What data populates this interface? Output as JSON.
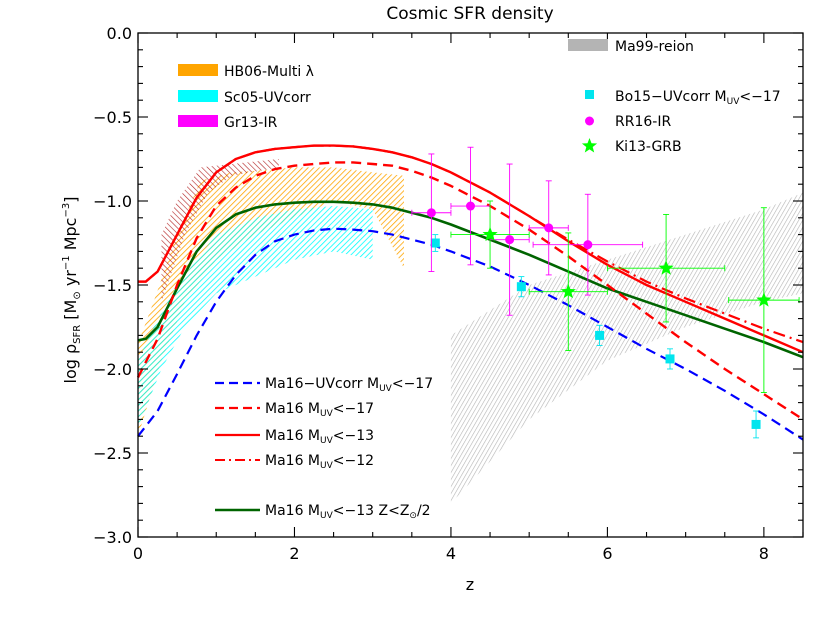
{
  "chart_data": {
    "type": "line",
    "title": "Cosmic SFR density",
    "xlabel": "z",
    "ylabel": "log ρ_SFR [M⊙ yr⁻¹ Mpc⁻³]",
    "ylabel_parts": {
      "main": "log ρ",
      "sub": "SFR",
      "rest": " [M",
      "sun": "⊙",
      "yr": " yr",
      "e1": "−1",
      "mpc": " Mpc",
      "e3": "−3",
      "close": "]"
    },
    "xlim": [
      0,
      8.5
    ],
    "ylim": [
      -3.0,
      0.0
    ],
    "xticks": [
      0,
      2,
      4,
      6,
      8
    ],
    "yticks": [
      -3.0,
      -2.5,
      -2.0,
      -1.5,
      -1.0,
      -0.5,
      0.0
    ],
    "ytick_labels": [
      "−3.0",
      "−2.5",
      "−2.0",
      "−1.5",
      "−1.0",
      "−0.5",
      "0.0"
    ],
    "colors": {
      "hb06": "#ffa500",
      "sc05": "#00ffff",
      "gr13": "#ff00ff",
      "ma99": "#b4b4b4",
      "bo15": "#00e5ee",
      "rr16": "#ff00ff",
      "ki13": "#00ff00",
      "ma16_uv": "#0000ff",
      "ma16_red": "#ff0000",
      "ma16_z": "#006400",
      "hb_hatch": "#b22222"
    },
    "bands": [
      {
        "name": "HB06-Multi λ",
        "color": "#ffa500",
        "lower": [
          [
            0,
            -2.4
          ],
          [
            0.3,
            -1.95
          ],
          [
            0.6,
            -1.6
          ],
          [
            1.0,
            -1.35
          ],
          [
            1.5,
            -1.2
          ],
          [
            2.0,
            -1.1
          ],
          [
            2.5,
            -1.0
          ],
          [
            3.0,
            -1.05
          ],
          [
            3.4,
            -1.4
          ]
        ],
        "upper": [
          [
            3.4,
            -0.85
          ],
          [
            3.0,
            -0.83
          ],
          [
            2.5,
            -0.8
          ],
          [
            2.0,
            -0.8
          ],
          [
            1.5,
            -0.82
          ],
          [
            1.2,
            -0.83
          ],
          [
            0.8,
            -0.88
          ],
          [
            0.5,
            -1.2
          ],
          [
            0.2,
            -1.6
          ],
          [
            0,
            -1.85
          ]
        ]
      },
      {
        "name": "Sc05-UVcorr",
        "color": "#00ffff",
        "lower": [
          [
            0,
            -2.35
          ],
          [
            0.3,
            -2.0
          ],
          [
            0.6,
            -1.75
          ],
          [
            1.0,
            -1.55
          ],
          [
            1.5,
            -1.45
          ],
          [
            2.0,
            -1.35
          ],
          [
            2.5,
            -1.3
          ],
          [
            3.0,
            -1.35
          ]
        ],
        "upper": [
          [
            3.0,
            -1.05
          ],
          [
            2.5,
            -1.03
          ],
          [
            2.0,
            -1.05
          ],
          [
            1.5,
            -1.1
          ],
          [
            1.0,
            -1.2
          ],
          [
            0.5,
            -1.5
          ],
          [
            0.2,
            -1.75
          ],
          [
            0,
            -1.95
          ]
        ]
      },
      {
        "name": "Ma99-reion",
        "color": "#b4b4b4",
        "lower": [
          [
            4.0,
            -2.8
          ],
          [
            5.0,
            -2.3
          ],
          [
            6.0,
            -1.95
          ],
          [
            7.0,
            -1.75
          ],
          [
            8.0,
            -1.6
          ],
          [
            8.5,
            -1.55
          ]
        ],
        "upper": [
          [
            8.5,
            -0.95
          ],
          [
            8.0,
            -1.05
          ],
          [
            7.0,
            -1.2
          ],
          [
            6.0,
            -1.35
          ],
          [
            5.0,
            -1.5
          ],
          [
            4.0,
            -1.8
          ]
        ]
      }
    ],
    "hb_hatch": {
      "lower": [
        [
          0.3,
          -1.6
        ],
        [
          0.6,
          -1.2
        ],
        [
          0.9,
          -0.95
        ],
        [
          1.2,
          -0.85
        ],
        [
          1.8,
          -0.8
        ]
      ],
      "upper": [
        [
          1.8,
          -0.75
        ],
        [
          1.2,
          -0.78
        ],
        [
          0.8,
          -0.8
        ],
        [
          0.5,
          -1.0
        ],
        [
          0.3,
          -1.2
        ]
      ]
    },
    "series": [
      {
        "name": "Ma16-UVcorr M_UV<-17",
        "label_main": "Ma16−UVcorr M",
        "label_sub": "UV",
        "label_rest": "<−17",
        "style": "dashed",
        "color": "#0000ff",
        "x": [
          0,
          0.25,
          0.5,
          0.75,
          1.0,
          1.25,
          1.5,
          1.75,
          2.0,
          2.25,
          2.5,
          2.75,
          3.0,
          3.25,
          3.5,
          3.75,
          4.0,
          4.5,
          5.0,
          5.5,
          6.0,
          6.5,
          7.0,
          7.5,
          8.0,
          8.5
        ],
        "y": [
          -2.4,
          -2.25,
          -2.03,
          -1.8,
          -1.6,
          -1.44,
          -1.32,
          -1.24,
          -1.2,
          -1.175,
          -1.165,
          -1.17,
          -1.18,
          -1.2,
          -1.23,
          -1.26,
          -1.3,
          -1.39,
          -1.5,
          -1.62,
          -1.75,
          -1.88,
          -2.0,
          -2.13,
          -2.27,
          -2.42
        ]
      },
      {
        "name": "Ma16 M_UV<-17",
        "label_main": "Ma16 M",
        "label_sub": "UV",
        "label_rest": "<−17",
        "style": "dashed",
        "color": "#ff0000",
        "x": [
          0,
          0.25,
          0.5,
          0.75,
          1.0,
          1.25,
          1.5,
          1.75,
          2.0,
          2.25,
          2.5,
          2.75,
          3.0,
          3.25,
          3.5,
          3.75,
          4.0,
          4.5,
          5.0,
          5.5,
          6.0,
          6.5,
          7.0,
          7.5,
          8.0,
          8.5
        ],
        "y": [
          -2.05,
          -1.82,
          -1.5,
          -1.22,
          -1.03,
          -0.92,
          -0.85,
          -0.81,
          -0.79,
          -0.78,
          -0.77,
          -0.77,
          -0.78,
          -0.79,
          -0.82,
          -0.86,
          -0.91,
          -1.03,
          -1.17,
          -1.33,
          -1.5,
          -1.67,
          -1.84,
          -2.0,
          -2.15,
          -2.3
        ]
      },
      {
        "name": "Ma16 M_UV<-13",
        "label_main": "Ma16 M",
        "label_sub": "UV",
        "label_rest": "<−13",
        "style": "solid",
        "color": "#ff0000",
        "x": [
          0,
          0.1,
          0.25,
          0.5,
          0.75,
          1.0,
          1.25,
          1.5,
          1.75,
          2.0,
          2.25,
          2.5,
          2.75,
          3.0,
          3.25,
          3.5,
          3.75,
          4.0,
          4.5,
          5.0,
          5.5,
          6.0,
          6.5,
          7.0,
          7.5,
          8.0,
          8.5
        ],
        "y": [
          -1.48,
          -1.48,
          -1.42,
          -1.2,
          -0.98,
          -0.83,
          -0.75,
          -0.71,
          -0.69,
          -0.68,
          -0.67,
          -0.67,
          -0.675,
          -0.69,
          -0.71,
          -0.74,
          -0.78,
          -0.83,
          -0.95,
          -1.09,
          -1.24,
          -1.38,
          -1.5,
          -1.6,
          -1.7,
          -1.8,
          -1.9
        ]
      },
      {
        "name": "Ma16 M_UV<-12",
        "label_main": "Ma16 M",
        "label_sub": "UV",
        "label_rest": "<−12",
        "style": "dashdot",
        "color": "#ff0000",
        "x": [
          0,
          0.1,
          0.25,
          0.5,
          0.75,
          1.0,
          1.25,
          1.5,
          1.75,
          2.0,
          2.25,
          2.5,
          2.75,
          3.0,
          3.25,
          3.5,
          3.75,
          4.0,
          4.5,
          5.0,
          5.5,
          6.0,
          6.5,
          7.0,
          7.5,
          8.0,
          8.5
        ],
        "y": [
          -1.48,
          -1.48,
          -1.42,
          -1.2,
          -0.98,
          -0.83,
          -0.75,
          -0.71,
          -0.69,
          -0.68,
          -0.67,
          -0.67,
          -0.675,
          -0.69,
          -0.71,
          -0.74,
          -0.78,
          -0.83,
          -0.95,
          -1.09,
          -1.23,
          -1.36,
          -1.48,
          -1.58,
          -1.67,
          -1.76,
          -1.84
        ]
      },
      {
        "name": "Ma16 M_UV<-13 Z<Z⊙/2",
        "label_main": "Ma16 M",
        "label_sub": "UV",
        "label_rest": "<−13 Z<Z",
        "label_sun": "⊙",
        "label_end": "/2",
        "style": "solid",
        "color": "#006400",
        "x": [
          0,
          0.1,
          0.25,
          0.5,
          0.75,
          1.0,
          1.25,
          1.5,
          1.75,
          2.0,
          2.25,
          2.5,
          2.75,
          3.0,
          3.25,
          3.5,
          3.75,
          4.0,
          4.5,
          5.0,
          5.5,
          6.0,
          6.5,
          7.0,
          7.5,
          8.0,
          8.5
        ],
        "y": [
          -1.83,
          -1.82,
          -1.75,
          -1.52,
          -1.3,
          -1.16,
          -1.08,
          -1.04,
          -1.02,
          -1.01,
          -1.005,
          -1.005,
          -1.01,
          -1.02,
          -1.04,
          -1.07,
          -1.1,
          -1.14,
          -1.23,
          -1.32,
          -1.42,
          -1.52,
          -1.6,
          -1.68,
          -1.76,
          -1.84,
          -1.93
        ]
      }
    ],
    "points": [
      {
        "name": "Bo15-UVcorr M_UV<-17",
        "label_main": "Bo15−UVcorr M",
        "label_sub": "UV",
        "label_rest": "<−17",
        "marker": "square",
        "color": "#00e5ee",
        "data": [
          {
            "x": 3.8,
            "y": -1.25,
            "yerr": 0.05
          },
          {
            "x": 4.9,
            "y": -1.51,
            "yerr": 0.06
          },
          {
            "x": 5.9,
            "y": -1.8,
            "yerr": 0.06
          },
          {
            "x": 6.8,
            "y": -1.94,
            "yerr": 0.06
          },
          {
            "x": 7.9,
            "y": -2.33,
            "yerr": 0.08
          }
        ]
      },
      {
        "name": "RR16-IR",
        "marker": "circle",
        "color": "#ff00ff",
        "data": [
          {
            "x": 3.75,
            "y": -1.07,
            "yerr": 0.35,
            "xerr": 0.25
          },
          {
            "x": 4.25,
            "y": -1.03,
            "yerr": 0.35,
            "xerr": 0.25
          },
          {
            "x": 4.75,
            "y": -1.23,
            "yerr": 0.45,
            "xerr": 0.25
          },
          {
            "x": 5.25,
            "y": -1.16,
            "yerr": 0.28,
            "xerr": 0.25
          },
          {
            "x": 5.75,
            "y": -1.26,
            "yerr": 0.3,
            "xerr": 0.7
          }
        ]
      },
      {
        "name": "Ki13-GRB",
        "marker": "star",
        "color": "#00ff00",
        "data": [
          {
            "x": 4.5,
            "y": -1.2,
            "yerr": 0.2,
            "xerr": 0.5
          },
          {
            "x": 5.5,
            "y": -1.54,
            "yerr": 0.35,
            "xerr": 0.5
          },
          {
            "x": 6.75,
            "y": -1.4,
            "yerr": 0.32,
            "xerr": 0.75
          },
          {
            "x": 8.0,
            "y": -1.59,
            "yerr": 0.55,
            "xerr": 0.45
          }
        ]
      }
    ],
    "legend_bands_topleft": [
      "HB06-Multi λ",
      "Sc05-UVcorr",
      "Gr13-IR"
    ],
    "legend_band_topright": "Ma99-reion",
    "legend_points_right": [
      "Bo15-UVcorr M_UV<-17",
      "RR16-IR",
      "Ki13-GRB"
    ],
    "legend_lines_bottomleft": [
      "Ma16-UVcorr M_UV<-17",
      "Ma16 M_UV<-17",
      "Ma16 M_UV<-13",
      "Ma16 M_UV<-12",
      "Ma16 M_UV<-13 Z<Z⊙/2"
    ]
  }
}
